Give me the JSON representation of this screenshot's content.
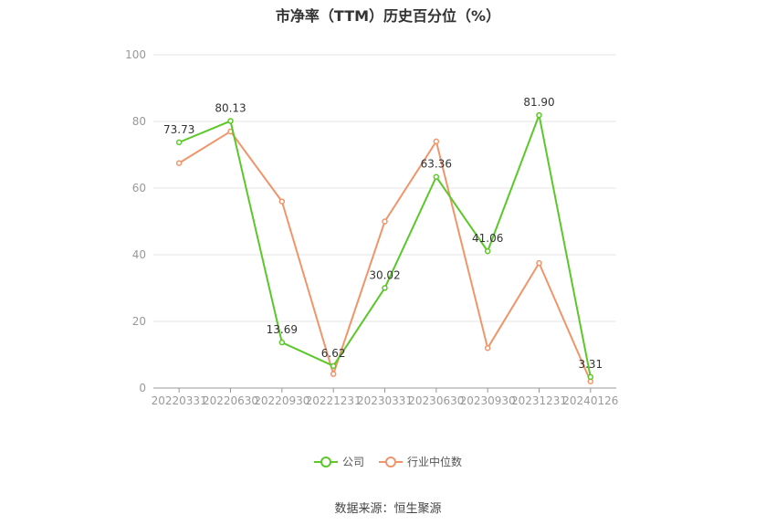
{
  "chart_data": {
    "type": "line",
    "title": "市净率（TTM）历史百分位（%）",
    "categories": [
      "20220331",
      "20220630",
      "20220930",
      "20221231",
      "20230331",
      "20230630",
      "20230930",
      "20231231",
      "20240126"
    ],
    "ylim": [
      0,
      100
    ],
    "yticks": [
      0,
      20,
      40,
      60,
      80,
      100
    ],
    "grid": true,
    "legend_position": "bottom",
    "series": [
      {
        "name": "公司",
        "color": "#5ac828",
        "values": [
          73.73,
          80.13,
          13.69,
          6.62,
          30.02,
          63.36,
          41.06,
          81.9,
          3.31
        ],
        "labels": [
          "73.73",
          "80.13",
          "13.69",
          "6.62",
          "30.02",
          "63.36",
          "41.06",
          "81.90",
          "3.31"
        ]
      },
      {
        "name": "行业中位数",
        "color": "#f0956a",
        "values": [
          67.5,
          77.0,
          56.0,
          4.2,
          50.0,
          74.0,
          12.0,
          37.5,
          2.0
        ]
      }
    ]
  },
  "legend": {
    "company": "公司",
    "industry": "行业中位数"
  },
  "source": "数据来源：恒生聚源"
}
